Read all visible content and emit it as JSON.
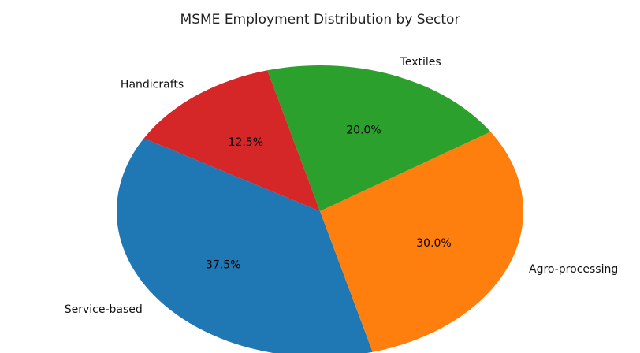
{
  "chart_data": {
    "type": "pie",
    "title": "MSME Employment Distribution by Sector",
    "slices": [
      {
        "label": "Service-based",
        "value": 37.5,
        "pct_label": "37.5%",
        "color": "#1f77b4"
      },
      {
        "label": "Agro-processing",
        "value": 30.0,
        "pct_label": "30.0%",
        "color": "#ff7f0e"
      },
      {
        "label": "Textiles",
        "value": 20.0,
        "pct_label": "20.0%",
        "color": "#2ca02c"
      },
      {
        "label": "Handicrafts",
        "value": 12.5,
        "pct_label": "12.5%",
        "color": "#d62728"
      }
    ]
  }
}
